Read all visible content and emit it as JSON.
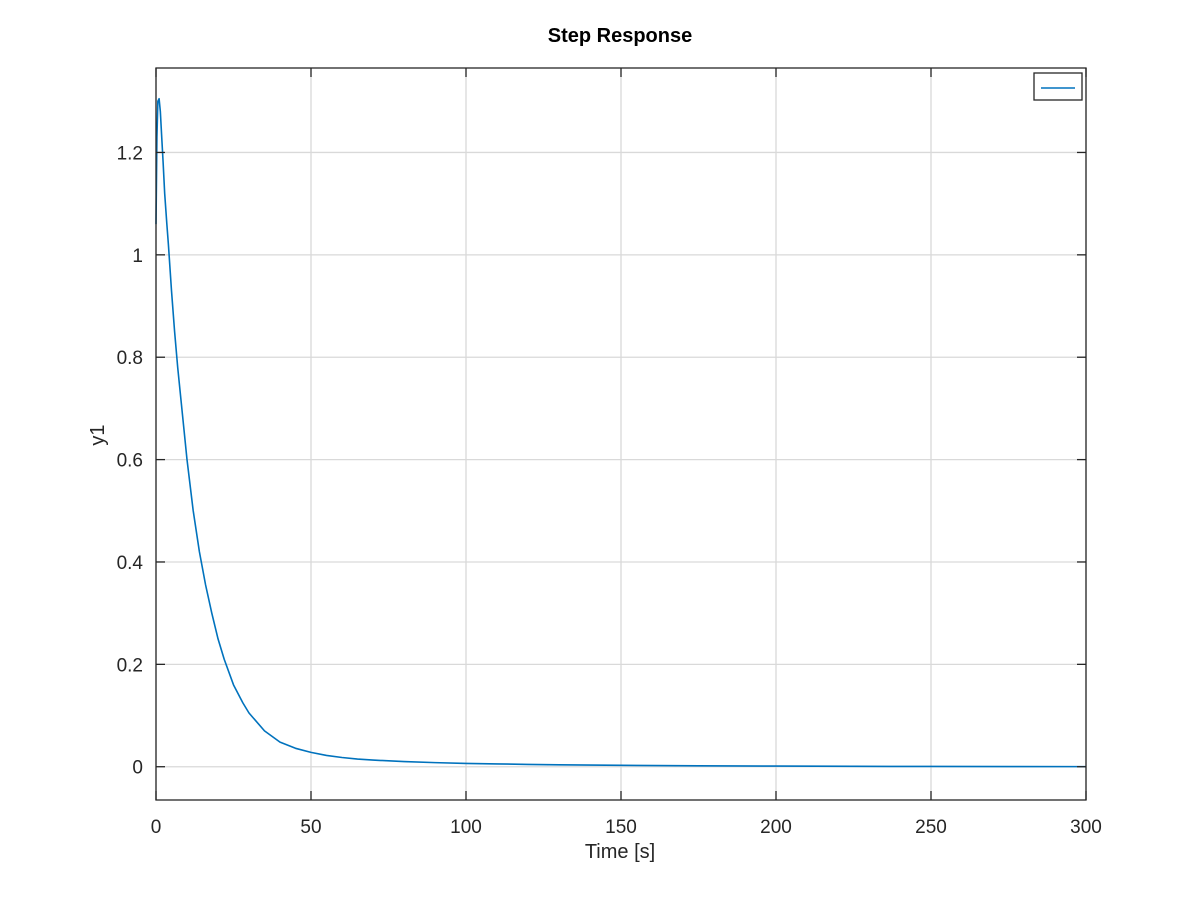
{
  "chart_data": {
    "type": "line",
    "title": "Step Response",
    "xlabel": "Time [s]",
    "ylabel": "y1",
    "xlim": [
      0,
      300
    ],
    "ylim": [
      -0.065,
      1.365
    ],
    "xticks": [
      0,
      50,
      100,
      150,
      200,
      250,
      300
    ],
    "yticks": [
      0,
      0.2,
      0.4,
      0.6,
      0.8,
      1,
      1.2
    ],
    "xtick_labels": [
      "0",
      "50",
      "100",
      "150",
      "200",
      "250",
      "300"
    ],
    "ytick_labels": [
      "0",
      "0.2",
      "0.4",
      "0.6",
      "0.8",
      "1",
      "1.2"
    ],
    "grid": true,
    "legend_position": "top-right",
    "series": [
      {
        "name": "",
        "color": "#0072bd",
        "x": [
          0,
          0.3,
          0.6,
          1.0,
          1.4,
          1.8,
          2.3,
          2.8,
          3.5,
          4,
          5,
          6,
          7,
          8,
          10,
          12,
          14,
          16,
          18,
          20,
          22,
          25,
          28,
          30,
          35,
          40,
          45,
          50,
          55,
          60,
          65,
          70,
          80,
          90,
          100,
          110,
          120,
          130,
          140,
          150,
          175,
          200,
          225,
          250,
          275,
          300
        ],
        "y": [
          1.06,
          1.23,
          1.3,
          1.305,
          1.28,
          1.235,
          1.18,
          1.12,
          1.06,
          1.02,
          0.93,
          0.85,
          0.78,
          0.72,
          0.6,
          0.5,
          0.42,
          0.355,
          0.3,
          0.25,
          0.21,
          0.16,
          0.125,
          0.105,
          0.07,
          0.048,
          0.036,
          0.028,
          0.022,
          0.018,
          0.015,
          0.013,
          0.01,
          0.008,
          0.0065,
          0.0055,
          0.0045,
          0.0038,
          0.0032,
          0.0027,
          0.0018,
          0.0012,
          0.0008,
          0.0005,
          0.0003,
          0.0002
        ]
      }
    ]
  }
}
